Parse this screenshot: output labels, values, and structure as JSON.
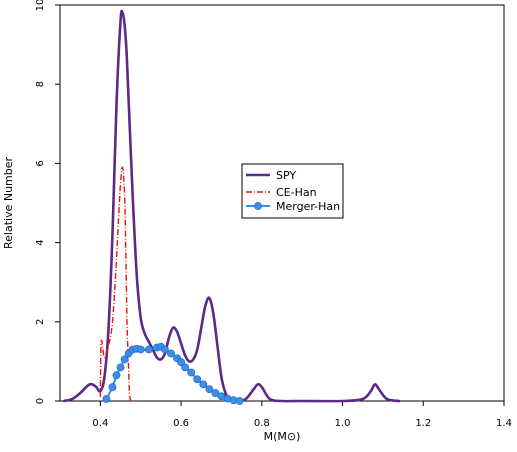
{
  "chart_data": {
    "type": "line",
    "xlabel": "M(M⊙)",
    "ylabel": "Relative Number",
    "xlim": [
      0.3,
      1.4
    ],
    "ylim": [
      0,
      10
    ],
    "xticks": [
      0.4,
      0.6,
      0.8,
      1.0,
      1.2,
      1.4
    ],
    "xtick_labels": [
      "0.4",
      "0.6",
      "0.8",
      "1.0",
      "1.2",
      "1.4"
    ],
    "yticks": [
      0,
      2,
      4,
      6,
      8,
      10
    ],
    "ytick_labels": [
      "0",
      "2",
      "4",
      "6",
      "8",
      "10"
    ],
    "legend_position": "center-right",
    "series": [
      {
        "name": "SPY",
        "color": "#5b2a86",
        "style": "solid",
        "x": [
          0.31,
          0.33,
          0.35,
          0.37,
          0.38,
          0.39,
          0.4,
          0.41,
          0.42,
          0.43,
          0.44,
          0.45,
          0.455,
          0.46,
          0.465,
          0.47,
          0.48,
          0.49,
          0.5,
          0.51,
          0.52,
          0.53,
          0.54,
          0.55,
          0.56,
          0.57,
          0.58,
          0.59,
          0.6,
          0.61,
          0.62,
          0.63,
          0.64,
          0.65,
          0.66,
          0.67,
          0.68,
          0.69,
          0.7,
          0.71,
          0.72,
          0.74,
          0.76,
          0.78,
          0.79,
          0.8,
          0.82,
          0.85,
          0.9,
          1.0,
          1.05,
          1.07,
          1.08,
          1.09,
          1.11,
          1.14
        ],
        "y": [
          0.0,
          0.05,
          0.2,
          0.4,
          0.42,
          0.35,
          0.25,
          0.6,
          1.8,
          4.2,
          7.5,
          9.6,
          9.8,
          9.5,
          8.8,
          7.6,
          5.2,
          3.2,
          2.1,
          1.7,
          1.5,
          1.3,
          1.1,
          1.05,
          1.2,
          1.6,
          1.85,
          1.75,
          1.45,
          1.15,
          1.0,
          1.05,
          1.3,
          1.85,
          2.4,
          2.6,
          2.2,
          1.4,
          0.6,
          0.2,
          0.05,
          0.0,
          0.05,
          0.3,
          0.42,
          0.35,
          0.05,
          0.0,
          0.0,
          0.0,
          0.05,
          0.25,
          0.42,
          0.3,
          0.05,
          0.0
        ]
      },
      {
        "name": "CE-Han",
        "color": "#e8160c",
        "style": "dashdot",
        "x": [
          0.4,
          0.402,
          0.41,
          0.42,
          0.43,
          0.44,
          0.445,
          0.45,
          0.455,
          0.46,
          0.463,
          0.466,
          0.47,
          0.472,
          0.475
        ],
        "y": [
          0.1,
          1.5,
          1.1,
          1.4,
          2.0,
          3.6,
          4.6,
          5.5,
          5.9,
          5.2,
          3.8,
          2.0,
          0.8,
          0.2,
          0.0
        ]
      },
      {
        "name": "Merger-Han",
        "color": "#3a8fe8",
        "style": "solid-points",
        "x": [
          0.415,
          0.43,
          0.44,
          0.45,
          0.46,
          0.47,
          0.48,
          0.49,
          0.5,
          0.52,
          0.54,
          0.55,
          0.56,
          0.575,
          0.59,
          0.6,
          0.61,
          0.625,
          0.64,
          0.655,
          0.67,
          0.685,
          0.7,
          0.715,
          0.73,
          0.745
        ],
        "y": [
          0.05,
          0.35,
          0.65,
          0.85,
          1.05,
          1.2,
          1.3,
          1.32,
          1.3,
          1.3,
          1.35,
          1.37,
          1.3,
          1.2,
          1.08,
          0.98,
          0.85,
          0.72,
          0.55,
          0.42,
          0.3,
          0.2,
          0.12,
          0.06,
          0.02,
          0.0
        ]
      }
    ]
  },
  "legend": {
    "items": [
      {
        "label": "SPY",
        "color": "#5b2a86",
        "style": "solid"
      },
      {
        "label": "CE-Han",
        "color": "#e8160c",
        "style": "dashdot"
      },
      {
        "label": "Merger-Han",
        "color": "#3a8fe8",
        "style": "solid-points"
      }
    ]
  }
}
